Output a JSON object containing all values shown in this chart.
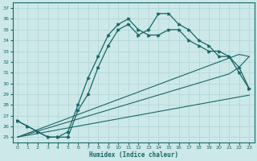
{
  "xlabel": "Humidex (Indice chaleur)",
  "background_color": "#cce8e8",
  "grid_color": "#b0d4d4",
  "line_color": "#1a6666",
  "xlim": [
    -0.5,
    23.5
  ],
  "ylim": [
    24.5,
    37.5
  ],
  "yticks": [
    25,
    26,
    27,
    28,
    29,
    30,
    31,
    32,
    33,
    34,
    35,
    36,
    37
  ],
  "xticks": [
    0,
    1,
    2,
    3,
    4,
    5,
    6,
    7,
    8,
    9,
    10,
    11,
    12,
    13,
    14,
    15,
    16,
    17,
    18,
    19,
    20,
    21,
    22,
    23
  ],
  "series_jagged": [
    26.5,
    26.0,
    25.5,
    25.0,
    25.0,
    25.0,
    27.5,
    29.0,
    31.5,
    33.5,
    35.0,
    35.5,
    34.5,
    35.0,
    36.5,
    36.5,
    35.5,
    35.0,
    34.0,
    33.5,
    32.5,
    32.5,
    31.0,
    29.5
  ],
  "series_smooth": [
    26.5,
    26.0,
    25.5,
    25.0,
    25.0,
    25.5,
    28.0,
    30.5,
    32.5,
    34.5,
    35.5,
    36.0,
    35.0,
    34.5,
    34.5,
    35.0,
    35.0,
    34.0,
    33.5,
    33.0,
    33.0,
    32.5,
    31.5,
    29.5
  ],
  "linear_high": [
    25.0,
    25.35,
    25.7,
    26.05,
    26.4,
    26.75,
    27.1,
    27.45,
    27.8,
    28.15,
    28.5,
    28.85,
    29.2,
    29.55,
    29.9,
    30.25,
    30.6,
    30.95,
    31.3,
    31.65,
    32.0,
    32.35,
    32.7,
    32.5
  ],
  "linear_mid": [
    25.0,
    25.28,
    25.56,
    25.84,
    26.12,
    26.4,
    26.68,
    26.96,
    27.24,
    27.52,
    27.8,
    28.08,
    28.36,
    28.64,
    28.92,
    29.2,
    29.48,
    29.76,
    30.04,
    30.32,
    30.6,
    30.88,
    31.5,
    32.5
  ],
  "linear_low": [
    25.0,
    25.17,
    25.34,
    25.51,
    25.68,
    25.85,
    26.02,
    26.19,
    26.36,
    26.53,
    26.7,
    26.87,
    27.04,
    27.21,
    27.38,
    27.55,
    27.72,
    27.89,
    28.06,
    28.23,
    28.4,
    28.57,
    28.74,
    28.9
  ]
}
